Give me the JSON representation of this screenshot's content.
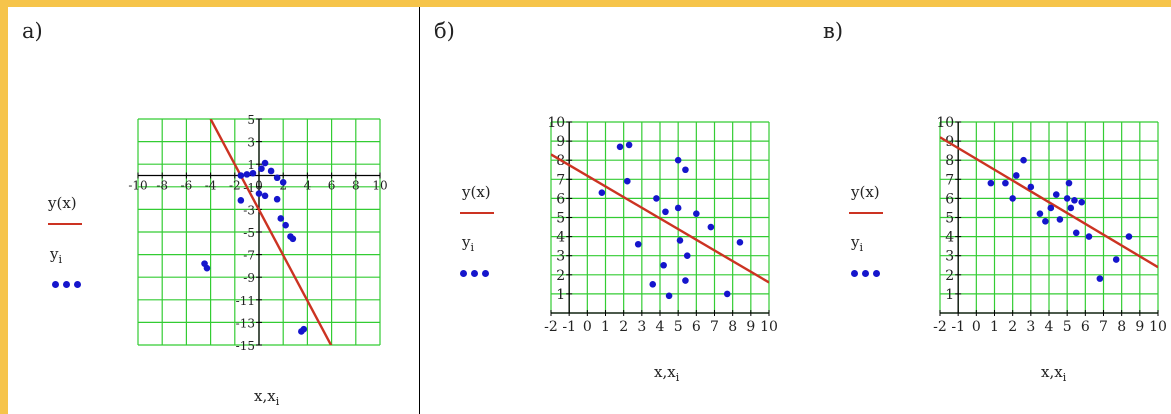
{
  "colors": {
    "frame": "#f6c44a",
    "grid": "#33cc33",
    "line": "#cc3322",
    "points": "#1515cc"
  },
  "panels": [
    {
      "letter": "а)",
      "legend_func": "y(x)",
      "legend_points": "y",
      "legend_points_sub": "i",
      "xlabel": "x,x",
      "xlabel_sub": "i"
    },
    {
      "letter": "б)",
      "legend_func": "y(x)",
      "legend_points": "y",
      "legend_points_sub": "i",
      "xlabel": "x,x",
      "xlabel_sub": "i"
    },
    {
      "letter": "в)",
      "legend_func": "y(x)",
      "legend_points": "y",
      "legend_points_sub": "i",
      "xlabel": "x,x",
      "xlabel_sub": "i"
    }
  ],
  "chart_data": [
    {
      "type": "scatter",
      "xlim": [
        -10,
        10
      ],
      "ylim": [
        -15,
        5
      ],
      "xticks": [
        -10,
        -8,
        -6,
        -4,
        -2,
        0,
        2,
        4,
        6,
        8,
        10
      ],
      "xtick_labels": [
        "-10",
        "-8",
        "-6",
        "-4",
        "-2",
        "0",
        "2",
        "4",
        "6",
        "8",
        "10"
      ],
      "yticks": [
        5,
        3,
        1,
        -1,
        -3,
        -5,
        -7,
        -9,
        -11,
        -13,
        -15
      ],
      "ytick_labels": [
        "5",
        "3",
        "1",
        "-1",
        "-3",
        "-5",
        "-7",
        "-9",
        "-11",
        "-13",
        "-15"
      ],
      "grid": true,
      "line": {
        "x": [
          -4,
          6
        ],
        "y": [
          5,
          -15.1
        ]
      },
      "points": [
        [
          -1.5,
          0
        ],
        [
          -1,
          0.1
        ],
        [
          -0.5,
          0.2
        ],
        [
          0.2,
          0.6
        ],
        [
          0.5,
          1.1
        ],
        [
          1,
          0.4
        ],
        [
          1.5,
          -0.2
        ],
        [
          2,
          -0.6
        ],
        [
          -1.5,
          -2.2
        ],
        [
          0,
          -1.6
        ],
        [
          0.5,
          -1.8
        ],
        [
          1.5,
          -2.1
        ],
        [
          1.8,
          -3.8
        ],
        [
          2.2,
          -4.4
        ],
        [
          2.6,
          -5.4
        ],
        [
          2.8,
          -5.6
        ],
        [
          -4.5,
          -7.8
        ],
        [
          -4.3,
          -8.2
        ],
        [
          3.5,
          -13.8
        ],
        [
          3.7,
          -13.6
        ]
      ]
    },
    {
      "type": "scatter",
      "xlim": [
        -2,
        10
      ],
      "ylim": [
        0,
        10
      ],
      "xticks": [
        -2,
        -1,
        0,
        1,
        2,
        3,
        4,
        5,
        6,
        7,
        8,
        9,
        10
      ],
      "xtick_labels": [
        "-2",
        "-1",
        "0",
        "1",
        "2",
        "3",
        "4",
        "5",
        "6",
        "7",
        "8",
        "9",
        "10"
      ],
      "yticks": [
        1,
        2,
        3,
        4,
        5,
        6,
        7,
        8,
        9,
        10
      ],
      "ytick_labels": [
        "1",
        "2",
        "3",
        "4",
        "5",
        "6",
        "7",
        "8",
        "9",
        "10"
      ],
      "grid": true,
      "line": {
        "x": [
          -2,
          10
        ],
        "y": [
          8.3,
          1.6
        ]
      },
      "points": [
        [
          0.8,
          6.3
        ],
        [
          1.8,
          8.7
        ],
        [
          2.3,
          8.8
        ],
        [
          2.2,
          6.9
        ],
        [
          2.8,
          3.6
        ],
        [
          3.8,
          6.0
        ],
        [
          4.3,
          5.3
        ],
        [
          4.2,
          2.5
        ],
        [
          3.6,
          1.5
        ],
        [
          4.5,
          0.9
        ],
        [
          5.0,
          5.5
        ],
        [
          5.0,
          8.0
        ],
        [
          5.4,
          7.5
        ],
        [
          5.1,
          3.8
        ],
        [
          5.5,
          3.0
        ],
        [
          5.4,
          1.7
        ],
        [
          6.0,
          5.2
        ],
        [
          6.8,
          4.5
        ],
        [
          7.7,
          1.0
        ],
        [
          8.4,
          3.7
        ]
      ]
    },
    {
      "type": "scatter",
      "xlim": [
        -2,
        10
      ],
      "ylim": [
        0,
        10
      ],
      "xticks": [
        -2,
        -1,
        0,
        1,
        2,
        3,
        4,
        5,
        6,
        7,
        8,
        9,
        10
      ],
      "xtick_labels": [
        "-2",
        "-1",
        "0",
        "1",
        "2",
        "3",
        "4",
        "5",
        "6",
        "7",
        "8",
        "9",
        "10"
      ],
      "yticks": [
        1,
        2,
        3,
        4,
        5,
        6,
        7,
        8,
        9,
        10
      ],
      "ytick_labels": [
        "1",
        "2",
        "3",
        "4",
        "5",
        "6",
        "7",
        "8",
        "9",
        "10"
      ],
      "grid": true,
      "line": {
        "x": [
          -2,
          10
        ],
        "y": [
          9.2,
          2.4
        ]
      },
      "points": [
        [
          0.8,
          6.8
        ],
        [
          1.6,
          6.8
        ],
        [
          2.0,
          6.0
        ],
        [
          2.2,
          7.2
        ],
        [
          2.6,
          8.0
        ],
        [
          3.0,
          6.6
        ],
        [
          3.5,
          5.2
        ],
        [
          3.8,
          4.8
        ],
        [
          4.1,
          5.5
        ],
        [
          4.4,
          6.2
        ],
        [
          4.6,
          4.9
        ],
        [
          5.0,
          6.0
        ],
        [
          5.1,
          6.8
        ],
        [
          5.2,
          5.5
        ],
        [
          5.4,
          5.9
        ],
        [
          5.5,
          4.2
        ],
        [
          5.8,
          5.8
        ],
        [
          6.2,
          4.0
        ],
        [
          6.8,
          1.8
        ],
        [
          7.7,
          2.8
        ],
        [
          8.4,
          4.0
        ]
      ]
    }
  ]
}
